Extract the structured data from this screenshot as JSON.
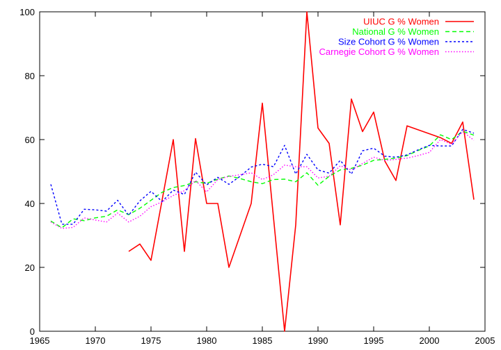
{
  "chart_data": {
    "type": "line",
    "title": "",
    "xlabel": "",
    "ylabel": "",
    "xlim": [
      1965,
      2005
    ],
    "ylim": [
      0,
      100
    ],
    "xticks": [
      1965,
      1970,
      1975,
      1980,
      1985,
      1990,
      1995,
      2000,
      2005
    ],
    "yticks": [
      0,
      20,
      40,
      60,
      80,
      100
    ],
    "grid": false,
    "legend_position": "top-right",
    "series": [
      {
        "name": "UIUC G % Women",
        "color": "#ff0000",
        "dash": "solid",
        "x": [
          1973,
          1974,
          1975,
          1977,
          1978,
          1979,
          1980,
          1981,
          1982,
          1984,
          1985,
          1987,
          1988,
          1989,
          1990,
          1991,
          1992,
          1993,
          1994,
          1995,
          1996,
          1997,
          1998,
          2001,
          2002,
          2003,
          2004
        ],
        "values": [
          25,
          27.3,
          22.2,
          60,
          25,
          60.3,
          40,
          40,
          20,
          40,
          71.4,
          0,
          33.3,
          100,
          63.6,
          58.8,
          33.3,
          72.7,
          62.5,
          68.6,
          53.3,
          47.2,
          64.3,
          60.6,
          58.8,
          65.5,
          41.2
        ]
      },
      {
        "name": "National G % Women",
        "color": "#00ff00",
        "dash": "dashed",
        "x": [
          1966,
          1967,
          1968,
          1969,
          1970,
          1971,
          1972,
          1973,
          1974,
          1975,
          1976,
          1977,
          1978,
          1979,
          1980,
          1981,
          1982,
          1983,
          1984,
          1985,
          1986,
          1987,
          1988,
          1989,
          1990,
          1991,
          1992,
          1993,
          1994,
          1995,
          1996,
          1997,
          1998,
          1999,
          2000,
          2001,
          2002,
          2003,
          2004
        ],
        "values": [
          34.5,
          32.4,
          35.2,
          34.6,
          35.5,
          36.0,
          38.0,
          36.5,
          38.5,
          41.0,
          43.5,
          45.0,
          45.6,
          46.8,
          46.3,
          47.6,
          48.6,
          47.8,
          46.8,
          46.2,
          47.5,
          47.6,
          46.8,
          49.6,
          45.7,
          48.5,
          50.5,
          51.0,
          52.0,
          53.5,
          53.8,
          54.2,
          55.0,
          56.6,
          58.0,
          61.5,
          60.0,
          62.6,
          61.4
        ]
      },
      {
        "name": "Size Cohort G % Women",
        "color": "#0000ff",
        "dash": "dotted",
        "x": [
          1966,
          1967,
          1968,
          1969,
          1970,
          1971,
          1972,
          1973,
          1974,
          1975,
          1976,
          1977,
          1978,
          1979,
          1980,
          1981,
          1982,
          1983,
          1984,
          1985,
          1986,
          1987,
          1988,
          1989,
          1990,
          1991,
          1992,
          1993,
          1994,
          1995,
          1996,
          1997,
          1998,
          1999,
          2000,
          2001,
          2002,
          2003,
          2004
        ],
        "values": [
          46,
          33.5,
          33.5,
          38.2,
          38,
          37.6,
          41,
          36.3,
          40.8,
          43.8,
          40.6,
          44.2,
          42.8,
          49.8,
          45.8,
          48.2,
          46.0,
          48.5,
          51.4,
          52.3,
          51.5,
          58.2,
          49.2,
          55.4,
          50.5,
          49.5,
          53.5,
          49.2,
          56.5,
          57.3,
          54.8,
          54.5,
          55.2,
          56.8,
          58.2,
          58.0,
          58.0,
          63.2,
          62.0
        ]
      },
      {
        "name": "Carnegie Cohort G % Women",
        "color": "#ff00ff",
        "dash": "finedot",
        "x": [
          1966,
          1967,
          1968,
          1969,
          1970,
          1971,
          1972,
          1973,
          1974,
          1975,
          1976,
          1977,
          1978,
          1979,
          1980,
          1981,
          1982,
          1983,
          1984,
          1985,
          1986,
          1987,
          1988,
          1989,
          1990,
          1991,
          1992,
          1993,
          1994,
          1995,
          1996,
          1997,
          1998,
          1999,
          2000,
          2001,
          2002,
          2003,
          2004
        ],
        "values": [
          34.2,
          32.2,
          32.5,
          35.5,
          34.8,
          34.2,
          37.0,
          34.2,
          36.0,
          39.0,
          40.5,
          42.5,
          44.0,
          47.2,
          43.6,
          47.5,
          48.5,
          49.0,
          49.6,
          47.5,
          49.0,
          52.0,
          51.5,
          51.5,
          48.0,
          48.5,
          51.8,
          50.5,
          52.5,
          54.5,
          53.5,
          53.8,
          54.2,
          55.0,
          56.0,
          60.0,
          58.5,
          62.5,
          59.8
        ]
      }
    ]
  }
}
